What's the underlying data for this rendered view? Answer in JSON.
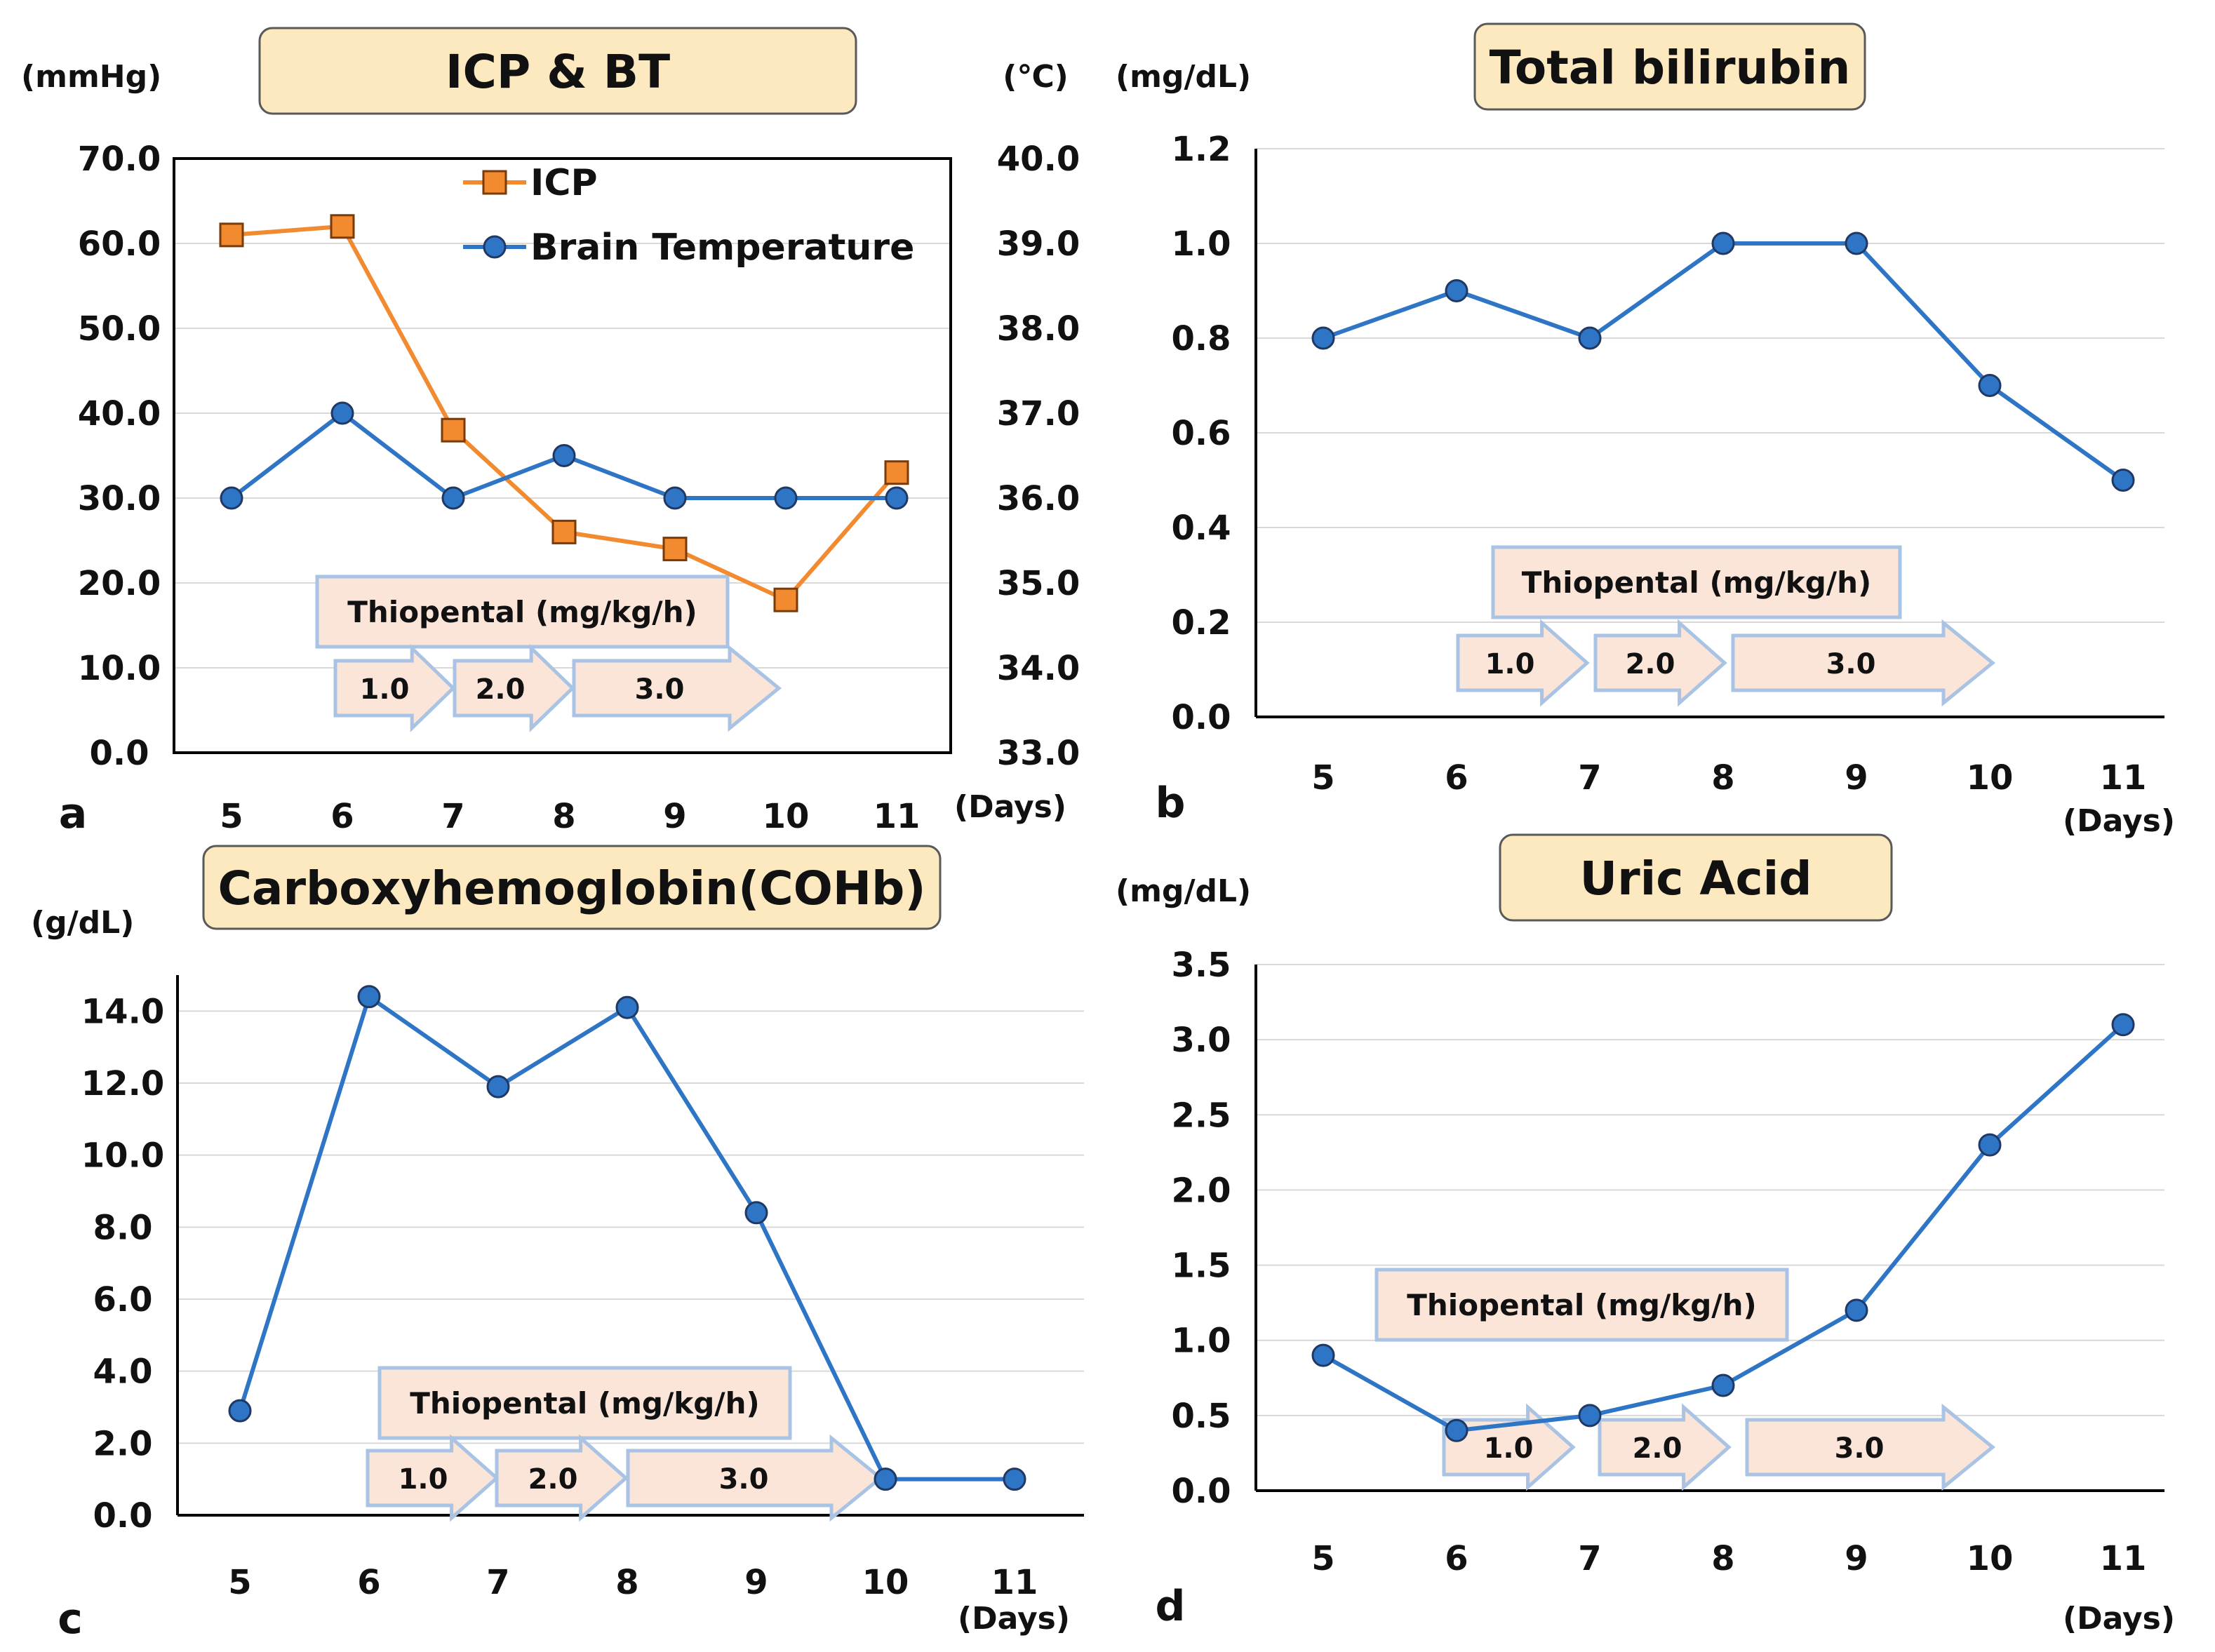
{
  "colors": {
    "blue": "#2E75C6",
    "orange": "#F28A30",
    "grid": "#D9D9D9",
    "title_fill": "#FCE9C0",
    "box_fill": "#FBE4D8",
    "box_stroke": "#A9C3E5",
    "arrow_fill": "#FBE4D8",
    "arrow_stroke": "#A9C3E5"
  },
  "chart_data": [
    {
      "panel": "a",
      "type": "line",
      "title": "ICP & BT",
      "ylabel_left": "(mmHg)",
      "ylabel_right": "(℃)",
      "xlabel": "(Days)",
      "x": [
        5,
        6,
        7,
        8,
        9,
        10,
        11
      ],
      "ylim": [
        0,
        70
      ],
      "ylim_right": [
        33,
        40
      ],
      "yticks": [
        "0.0",
        "10.0",
        "20.0",
        "30.0",
        "40.0",
        "50.0",
        "60.0",
        "70.0"
      ],
      "yticks_right": [
        "33.0",
        "34.0",
        "35.0",
        "36.0",
        "37.0",
        "38.0",
        "39.0",
        "40.0"
      ],
      "grid": true,
      "legend": "top-right",
      "series": [
        {
          "name": "ICP",
          "axis": "left",
          "marker": "square",
          "color": "orange",
          "values": [
            61,
            62,
            38,
            26,
            24,
            18,
            33
          ]
        },
        {
          "name": "Brain Temperature",
          "axis": "right",
          "marker": "circle",
          "color": "blue",
          "values": [
            36.0,
            37.0,
            36.0,
            36.5,
            36.0,
            36.0,
            36.0
          ]
        }
      ],
      "annotation": {
        "label": "Thiopental (mg/kg/h)",
        "doses": [
          "1.0",
          "2.0",
          "3.0"
        ]
      }
    },
    {
      "panel": "b",
      "type": "line",
      "title": "Total bilirubin",
      "ylabel": "(mg/dL)",
      "xlabel": "(Days)",
      "x": [
        5,
        6,
        7,
        8,
        9,
        10,
        11
      ],
      "ylim": [
        0,
        1.2
      ],
      "yticks": [
        "0.0",
        "0.2",
        "0.4",
        "0.6",
        "0.8",
        "1.0",
        "1.2"
      ],
      "grid": true,
      "series": [
        {
          "name": "Total bilirubin",
          "color": "blue",
          "values": [
            0.8,
            0.9,
            0.8,
            1.0,
            1.0,
            0.7,
            0.5
          ]
        }
      ],
      "annotation": {
        "label": "Thiopental (mg/kg/h)",
        "doses": [
          "1.0",
          "2.0",
          "3.0"
        ]
      }
    },
    {
      "panel": "c",
      "type": "line",
      "title": "Carboxyhemoglobin(COHb)",
      "ylabel": "(g/dL)",
      "xlabel": "(Days)",
      "x": [
        5,
        6,
        7,
        8,
        9,
        10,
        11
      ],
      "ylim": [
        0,
        15
      ],
      "yticks": [
        "0.0",
        "2.0",
        "4.0",
        "6.0",
        "8.0",
        "10.0",
        "12.0",
        "14.0"
      ],
      "grid": true,
      "series": [
        {
          "name": "COHb",
          "color": "blue",
          "values": [
            2.9,
            14.4,
            11.9,
            14.1,
            8.4,
            1.0,
            1.0
          ]
        }
      ],
      "annotation": {
        "label": "Thiopental (mg/kg/h)",
        "doses": [
          "1.0",
          "2.0",
          "3.0"
        ]
      }
    },
    {
      "panel": "d",
      "type": "line",
      "title": "Uric Acid",
      "ylabel": "(mg/dL)",
      "xlabel": "(Days)",
      "x": [
        5,
        6,
        7,
        8,
        9,
        10,
        11
      ],
      "ylim": [
        0,
        3.5
      ],
      "yticks": [
        "0.0",
        "0.5",
        "1.0",
        "1.5",
        "2.0",
        "2.5",
        "3.0",
        "3.5"
      ],
      "grid": true,
      "series": [
        {
          "name": "Uric Acid",
          "color": "blue",
          "values": [
            0.9,
            0.4,
            0.5,
            0.7,
            1.2,
            2.3,
            3.1
          ]
        }
      ],
      "annotation": {
        "label": "Thiopental (mg/kg/h)",
        "doses": [
          "1.0",
          "2.0",
          "3.0"
        ]
      }
    }
  ]
}
